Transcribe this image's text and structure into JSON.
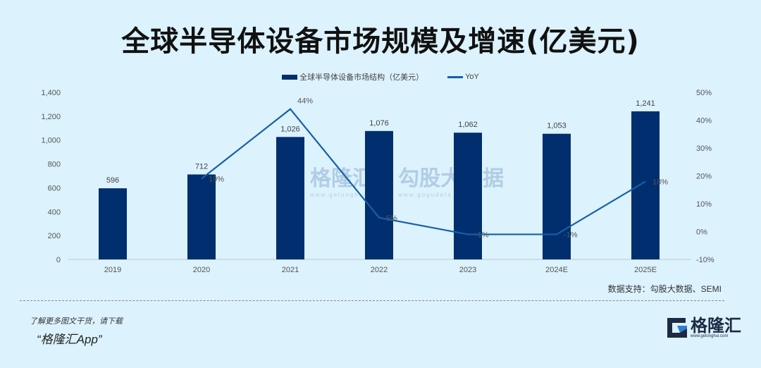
{
  "title": "全球半导体设备市场规模及增速(亿美元)",
  "legend": {
    "bar_label": "全球半导体设备市场结构（亿美元）",
    "line_label": "YoY"
  },
  "source": "数据支持：勾股大数据、SEMI",
  "promo": {
    "line1": "了解更多图文干货，请下载",
    "line2": "“格隆汇App”"
  },
  "logo": {
    "name": "格隆汇",
    "url": "www.gelonghui.com"
  },
  "watermark": {
    "brand1": "格隆汇",
    "brand1_url": "www.gelonghui.com",
    "brand2": "勾股大数据",
    "brand2_url": "www.gogudata.com"
  },
  "colors": {
    "background": "#dcf2fd",
    "bar": "#002e6e",
    "line": "#1560a8",
    "axis_text": "#555555"
  },
  "chart_data": {
    "type": "bar",
    "title": "全球半导体设备市场规模及增速(亿美元)",
    "categories": [
      "2019",
      "2020",
      "2021",
      "2022",
      "2023",
      "2024E",
      "2025E"
    ],
    "series": [
      {
        "name": "全球半导体设备市场结构（亿美元）",
        "type": "bar",
        "axis": "left",
        "values": [
          596,
          712,
          1026,
          1076,
          1062,
          1053,
          1241
        ],
        "labels": [
          "596",
          "712",
          "1,026",
          "1,076",
          "1,062",
          "1,053",
          "1,241"
        ]
      },
      {
        "name": "YoY",
        "type": "line",
        "axis": "right",
        "values": [
          null,
          19,
          44,
          5,
          -1,
          -1,
          18
        ],
        "labels": [
          "",
          "19%",
          "44%",
          "5%",
          "-1%",
          "-1%",
          "18%"
        ]
      }
    ],
    "left_axis": {
      "ylim": [
        0,
        1400
      ],
      "ticks": [
        "0",
        "200",
        "400",
        "600",
        "800",
        "1,000",
        "1,200",
        "1,400"
      ]
    },
    "right_axis": {
      "ylim": [
        -10,
        50
      ],
      "ticks": [
        "-10%",
        "0%",
        "10%",
        "20%",
        "30%",
        "40%",
        "50%"
      ]
    },
    "xlabel": "",
    "ylabel": "",
    "grid": false,
    "legend_position": "top"
  }
}
